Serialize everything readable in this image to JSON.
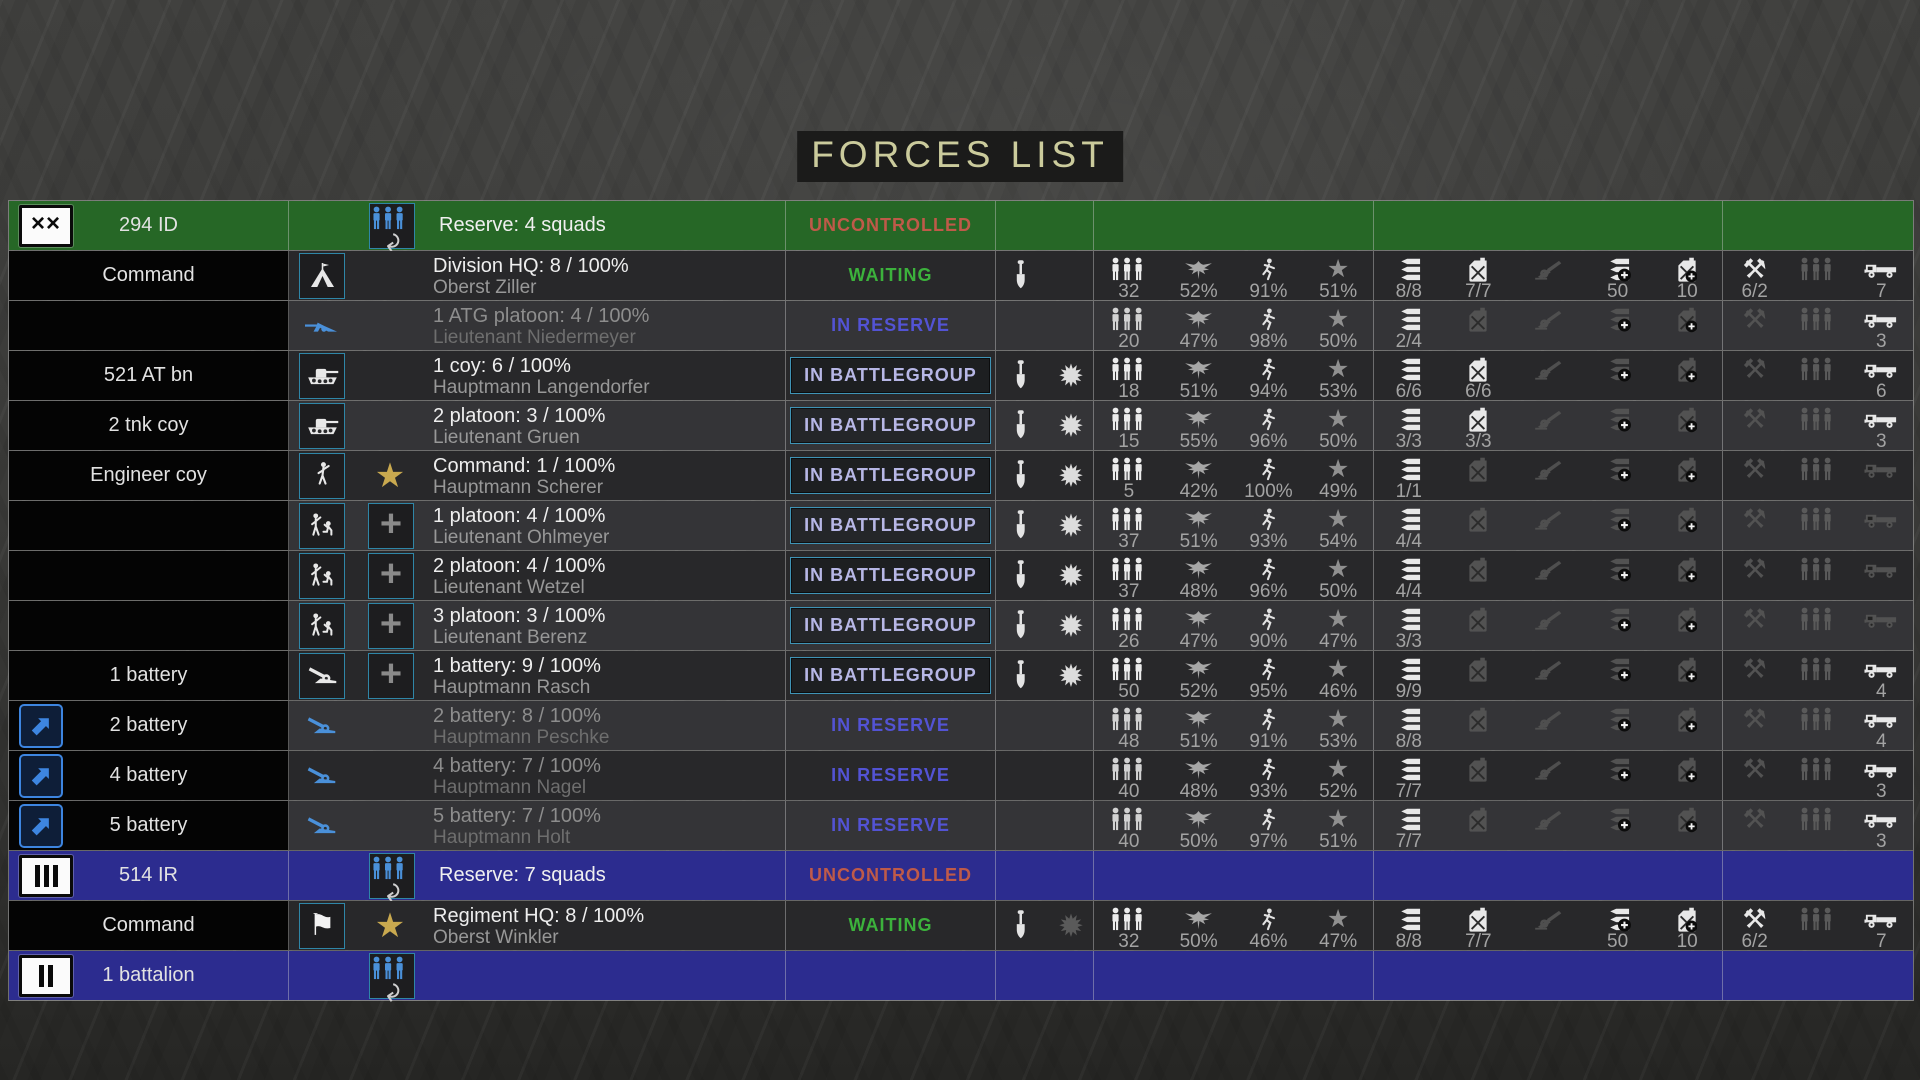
{
  "title": {
    "text": "FORCES LIST"
  },
  "colors": {
    "group_green": "#266726",
    "group_navy": "#2c2c8f",
    "accent_blue": "#4a90d9",
    "status_waiting": "#3cb23c",
    "status_in_reserve": "#5353d4",
    "status_in_battlegroup": "#b7b7e6",
    "status_uncontrolled": "#bf5a49",
    "gold_star": "#c9a94f",
    "title_text": "#cbcb9c"
  },
  "rows": [
    {
      "type": "group",
      "tone": "green",
      "badge": "XX",
      "label": "294 ID",
      "icon": "squads",
      "reserve": "Reserve: 4  squads",
      "status": "UNCONTROLLED"
    },
    {
      "type": "unit",
      "tone": "dark",
      "badge": null,
      "label": "Command",
      "icon": "tent",
      "icon_boxed": true,
      "icon_blue": false,
      "extra": null,
      "name": "Division HQ: 8 / 100%",
      "commander": "Oberst Ziller",
      "dim": false,
      "status": "WAITING",
      "status_boxed": false,
      "entrench": true,
      "combat": null,
      "soldiers": "32",
      "morale": "52%",
      "stamina": "91%",
      "experience": "51%",
      "ammo": "8/8",
      "ammo_on": true,
      "fuel": "7/7",
      "fuel_on": true,
      "gun_on": false,
      "ammo_resupply": "50",
      "ammo_resupply_on": true,
      "fuel_resupply": "10",
      "fuel_resupply_on": true,
      "repair": "6/2",
      "repair_on": true,
      "trucks": "7",
      "trucks_on": true
    },
    {
      "type": "unit",
      "tone": "light",
      "badge": null,
      "label": "",
      "icon": "atg",
      "icon_boxed": false,
      "icon_blue": true,
      "extra": null,
      "name": "1 ATG platoon: 4 / 100%",
      "commander": "Lieutenant Niedermeyer",
      "dim": true,
      "status": "IN RESERVE",
      "status_boxed": false,
      "entrench": false,
      "combat": null,
      "soldiers": "20",
      "morale": "47%",
      "stamina": "98%",
      "experience": "50%",
      "ammo": "2/4",
      "ammo_on": true,
      "fuel": "",
      "fuel_on": false,
      "gun_on": false,
      "ammo_resupply": "",
      "ammo_resupply_on": false,
      "fuel_resupply": "",
      "fuel_resupply_on": false,
      "repair": "",
      "repair_on": false,
      "trucks": "3",
      "trucks_on": true
    },
    {
      "type": "unit",
      "tone": "dark",
      "badge": null,
      "label": "521 AT bn",
      "icon": "tank",
      "icon_boxed": true,
      "icon_blue": false,
      "extra": null,
      "name": "1 coy: 6 / 100%",
      "commander": "Hauptmann Langendorfer",
      "dim": false,
      "status": "IN BATTLEGROUP",
      "status_boxed": true,
      "entrench": true,
      "combat": "on",
      "soldiers": "18",
      "morale": "51%",
      "stamina": "94%",
      "experience": "53%",
      "ammo": "6/6",
      "ammo_on": true,
      "fuel": "6/6",
      "fuel_on": true,
      "gun_on": false,
      "ammo_resupply": "",
      "ammo_resupply_on": false,
      "fuel_resupply": "",
      "fuel_resupply_on": false,
      "repair": "",
      "repair_on": false,
      "trucks": "6",
      "trucks_on": true
    },
    {
      "type": "unit",
      "tone": "light",
      "badge": null,
      "label": "2 tnk coy",
      "icon": "tank",
      "icon_boxed": true,
      "icon_blue": false,
      "extra": null,
      "name": "2 platoon: 3 / 100%",
      "commander": "Lieutenant Gruen",
      "dim": false,
      "status": "IN BATTLEGROUP",
      "status_boxed": true,
      "entrench": true,
      "combat": "on",
      "soldiers": "15",
      "morale": "55%",
      "stamina": "96%",
      "experience": "50%",
      "ammo": "3/3",
      "ammo_on": true,
      "fuel": "3/3",
      "fuel_on": true,
      "gun_on": false,
      "ammo_resupply": "",
      "ammo_resupply_on": false,
      "fuel_resupply": "",
      "fuel_resupply_on": false,
      "repair": "",
      "repair_on": false,
      "trucks": "3",
      "trucks_on": true
    },
    {
      "type": "unit",
      "tone": "dark",
      "badge": null,
      "label": "Engineer coy",
      "icon": "figure",
      "icon_boxed": true,
      "icon_blue": false,
      "extra": "gold-star",
      "name": "Command: 1 / 100%",
      "commander": "Hauptmann Scherer",
      "dim": false,
      "status": "IN BATTLEGROUP",
      "status_boxed": true,
      "entrench": true,
      "combat": "on",
      "soldiers": "5",
      "morale": "42%",
      "stamina": "100%",
      "experience": "49%",
      "ammo": "1/1",
      "ammo_on": true,
      "fuel": "",
      "fuel_on": false,
      "gun_on": false,
      "ammo_resupply": "",
      "ammo_resupply_on": false,
      "fuel_resupply": "",
      "fuel_resupply_on": false,
      "repair": "",
      "repair_on": false,
      "trucks": "",
      "trucks_on": false
    },
    {
      "type": "unit",
      "tone": "light",
      "badge": null,
      "label": "",
      "icon": "engineers",
      "icon_boxed": true,
      "icon_blue": false,
      "extra": "plus",
      "name": "1 platoon: 4 / 100%",
      "commander": "Lieutenant Ohlmeyer",
      "dim": false,
      "status": "IN BATTLEGROUP",
      "status_boxed": true,
      "entrench": true,
      "combat": "on",
      "soldiers": "37",
      "morale": "51%",
      "stamina": "93%",
      "experience": "54%",
      "ammo": "4/4",
      "ammo_on": true,
      "fuel": "",
      "fuel_on": false,
      "gun_on": false,
      "ammo_resupply": "",
      "ammo_resupply_on": false,
      "fuel_resupply": "",
      "fuel_resupply_on": false,
      "repair": "",
      "repair_on": false,
      "trucks": "",
      "trucks_on": false
    },
    {
      "type": "unit",
      "tone": "dark",
      "badge": null,
      "label": "",
      "icon": "engineers",
      "icon_boxed": true,
      "icon_blue": false,
      "extra": "plus",
      "name": "2 platoon: 4 / 100%",
      "commander": "Lieutenant Wetzel",
      "dim": false,
      "status": "IN BATTLEGROUP",
      "status_boxed": true,
      "entrench": true,
      "combat": "on",
      "soldiers": "37",
      "morale": "48%",
      "stamina": "96%",
      "experience": "50%",
      "ammo": "4/4",
      "ammo_on": true,
      "fuel": "",
      "fuel_on": false,
      "gun_on": false,
      "ammo_resupply": "",
      "ammo_resupply_on": false,
      "fuel_resupply": "",
      "fuel_resupply_on": false,
      "repair": "",
      "repair_on": false,
      "trucks": "",
      "trucks_on": false
    },
    {
      "type": "unit",
      "tone": "light",
      "badge": null,
      "label": "",
      "icon": "engineers",
      "icon_boxed": true,
      "icon_blue": false,
      "extra": "plus",
      "name": "3 platoon: 3 / 100%",
      "commander": "Lieutenant Berenz",
      "dim": false,
      "status": "IN BATTLEGROUP",
      "status_boxed": true,
      "entrench": true,
      "combat": "on",
      "soldiers": "26",
      "morale": "47%",
      "stamina": "90%",
      "experience": "47%",
      "ammo": "3/3",
      "ammo_on": true,
      "fuel": "",
      "fuel_on": false,
      "gun_on": false,
      "ammo_resupply": "",
      "ammo_resupply_on": false,
      "fuel_resupply": "",
      "fuel_resupply_on": false,
      "repair": "",
      "repair_on": false,
      "trucks": "",
      "trucks_on": false
    },
    {
      "type": "unit",
      "tone": "dark",
      "badge": null,
      "label": "1 battery",
      "icon": "howitzer",
      "icon_boxed": true,
      "icon_blue": false,
      "extra": "plus",
      "name": "1 battery: 9 / 100%",
      "commander": "Hauptmann Rasch",
      "dim": false,
      "status": "IN BATTLEGROUP",
      "status_boxed": true,
      "entrench": true,
      "combat": "on",
      "soldiers": "50",
      "morale": "52%",
      "stamina": "95%",
      "experience": "46%",
      "ammo": "9/9",
      "ammo_on": true,
      "fuel": "",
      "fuel_on": false,
      "gun_on": false,
      "ammo_resupply": "",
      "ammo_resupply_on": false,
      "fuel_resupply": "",
      "fuel_resupply_on": false,
      "repair": "",
      "repair_on": false,
      "trucks": "4",
      "trucks_on": true
    },
    {
      "type": "unit",
      "tone": "light",
      "badge": "export",
      "label": "2 battery",
      "icon": "howitzer",
      "icon_boxed": false,
      "icon_blue": true,
      "extra": null,
      "name": "2 battery: 8 / 100%",
      "commander": "Hauptmann Peschke",
      "dim": true,
      "status": "IN RESERVE",
      "status_boxed": false,
      "entrench": false,
      "combat": null,
      "soldiers": "48",
      "morale": "51%",
      "stamina": "91%",
      "experience": "53%",
      "ammo": "8/8",
      "ammo_on": true,
      "fuel": "",
      "fuel_on": false,
      "gun_on": false,
      "ammo_resupply": "",
      "ammo_resupply_on": false,
      "fuel_resupply": "",
      "fuel_resupply_on": false,
      "repair": "",
      "repair_on": false,
      "trucks": "4",
      "trucks_on": true
    },
    {
      "type": "unit",
      "tone": "dark",
      "badge": "export",
      "label": "4 battery",
      "icon": "howitzer",
      "icon_boxed": false,
      "icon_blue": true,
      "extra": null,
      "name": "4 battery: 7 / 100%",
      "commander": "Hauptmann Nagel",
      "dim": true,
      "status": "IN RESERVE",
      "status_boxed": false,
      "entrench": false,
      "combat": null,
      "soldiers": "40",
      "morale": "48%",
      "stamina": "93%",
      "experience": "52%",
      "ammo": "7/7",
      "ammo_on": true,
      "fuel": "",
      "fuel_on": false,
      "gun_on": false,
      "ammo_resupply": "",
      "ammo_resupply_on": false,
      "fuel_resupply": "",
      "fuel_resupply_on": false,
      "repair": "",
      "repair_on": false,
      "trucks": "3",
      "trucks_on": true
    },
    {
      "type": "unit",
      "tone": "light",
      "badge": "export",
      "label": "5 battery",
      "icon": "howitzer",
      "icon_boxed": false,
      "icon_blue": true,
      "extra": null,
      "name": "5 battery: 7 / 100%",
      "commander": "Hauptmann Holt",
      "dim": true,
      "status": "IN RESERVE",
      "status_boxed": false,
      "entrench": false,
      "combat": null,
      "soldiers": "40",
      "morale": "50%",
      "stamina": "97%",
      "experience": "51%",
      "ammo": "7/7",
      "ammo_on": true,
      "fuel": "",
      "fuel_on": false,
      "gun_on": false,
      "ammo_resupply": "",
      "ammo_resupply_on": false,
      "fuel_resupply": "",
      "fuel_resupply_on": false,
      "repair": "",
      "repair_on": false,
      "trucks": "3",
      "trucks_on": true
    },
    {
      "type": "group",
      "tone": "navy",
      "badge": "III",
      "label": "514 IR",
      "icon": "squads",
      "reserve": "Reserve: 7  squads",
      "status": "UNCONTROLLED"
    },
    {
      "type": "unit",
      "tone": "dark",
      "badge": null,
      "label": "Command",
      "icon": "flag",
      "icon_boxed": true,
      "icon_blue": false,
      "extra": "gold-star",
      "name": "Regiment HQ: 8 / 100%",
      "commander": "Oberst Winkler",
      "dim": false,
      "status": "WAITING",
      "status_boxed": false,
      "entrench": true,
      "combat": "dim",
      "soldiers": "32",
      "morale": "50%",
      "stamina": "46%",
      "experience": "47%",
      "ammo": "8/8",
      "ammo_on": true,
      "fuel": "7/7",
      "fuel_on": true,
      "gun_on": false,
      "ammo_resupply": "50",
      "ammo_resupply_on": true,
      "fuel_resupply": "10",
      "fuel_resupply_on": true,
      "repair": "6/2",
      "repair_on": true,
      "trucks": "7",
      "trucks_on": true
    },
    {
      "type": "group",
      "tone": "navy",
      "badge": "II",
      "label": "1 battalion",
      "icon": "squads",
      "reserve": "",
      "status": ""
    }
  ]
}
